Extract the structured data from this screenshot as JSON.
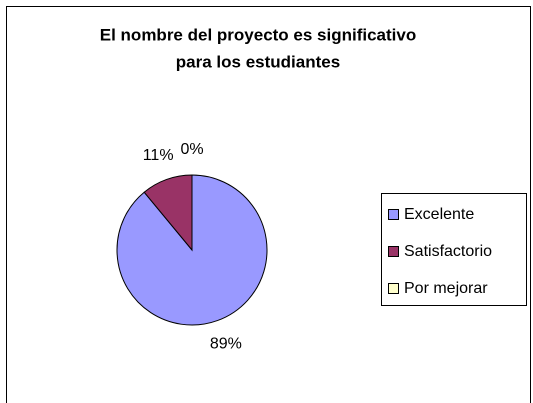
{
  "chart_data": {
    "type": "pie",
    "title": [
      "El nombre del proyecto es significativo",
      "para los estudiantes"
    ],
    "categories": [
      "Excelente",
      "Satisfactorio",
      "Por mejorar"
    ],
    "values": [
      89,
      11,
      0
    ],
    "value_labels": [
      "89%",
      "11%",
      "0%"
    ],
    "colors": [
      "#9999ff",
      "#993366",
      "#ffffcc"
    ],
    "legend": "right"
  }
}
